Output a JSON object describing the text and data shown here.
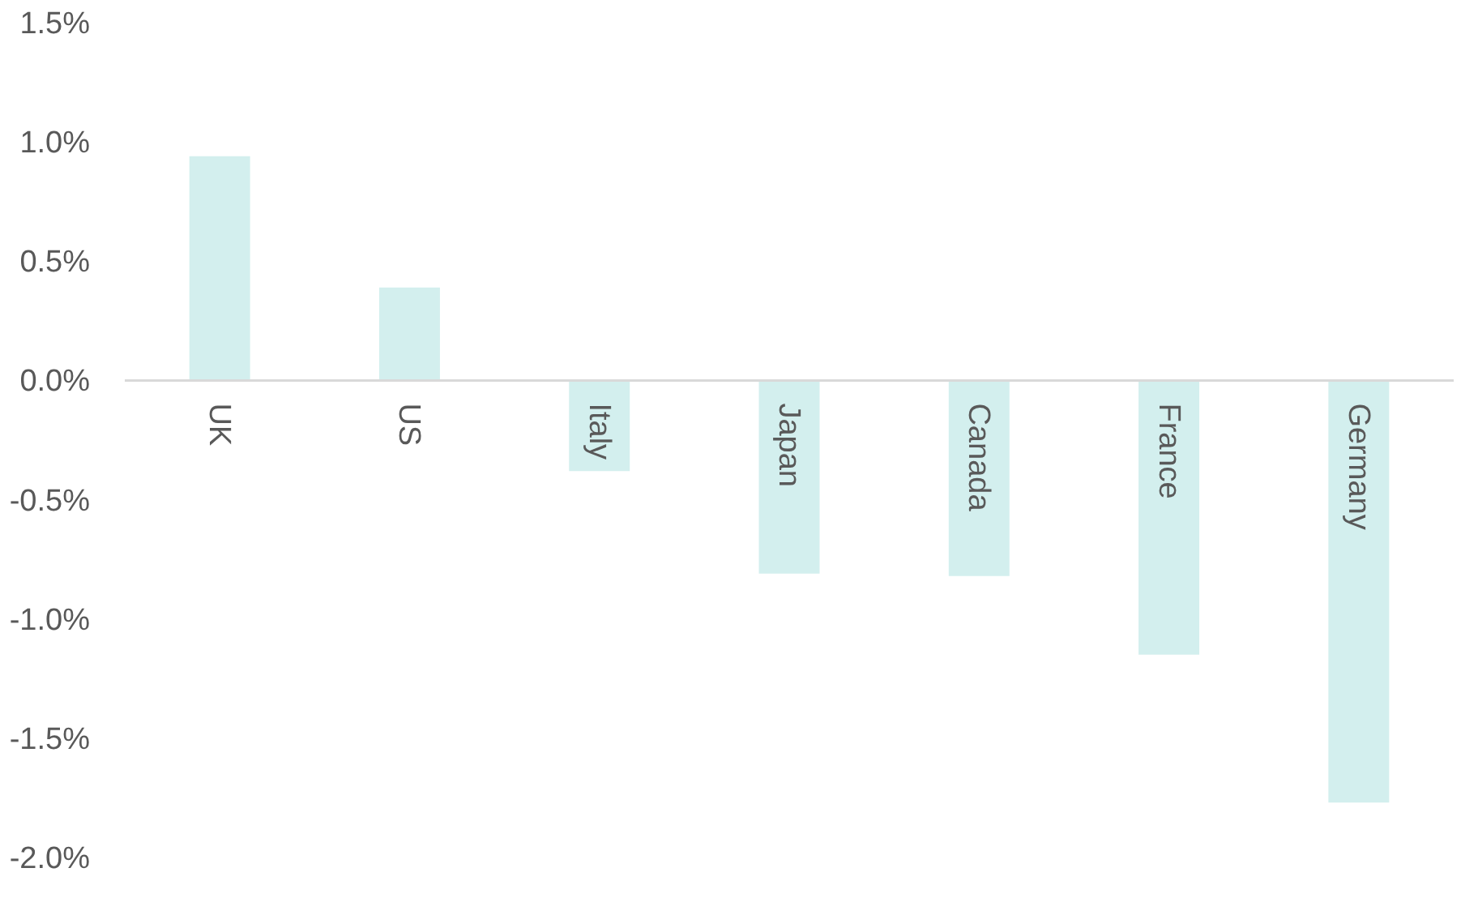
{
  "chart_data": {
    "type": "bar",
    "categories": [
      "UK",
      "US",
      "Italy",
      "Japan",
      "Canada",
      "France",
      "Germany"
    ],
    "values": [
      0.94,
      0.39,
      -0.38,
      -0.81,
      -0.82,
      -1.15,
      -1.77
    ],
    "color": "#d3efee",
    "ylim": [
      -2.0,
      1.5
    ],
    "yticks": [
      {
        "value": 1.5,
        "label": "1.5%"
      },
      {
        "value": 1.0,
        "label": "1.0%"
      },
      {
        "value": 0.5,
        "label": "0.5%"
      },
      {
        "value": 0.0,
        "label": "0.0%"
      },
      {
        "value": -0.5,
        "label": "-0.5%"
      },
      {
        "value": -1.0,
        "label": "-1.0%"
      },
      {
        "value": -1.5,
        "label": "-1.5%"
      },
      {
        "value": -2.0,
        "label": "-2.0%"
      }
    ],
    "grid": false
  }
}
